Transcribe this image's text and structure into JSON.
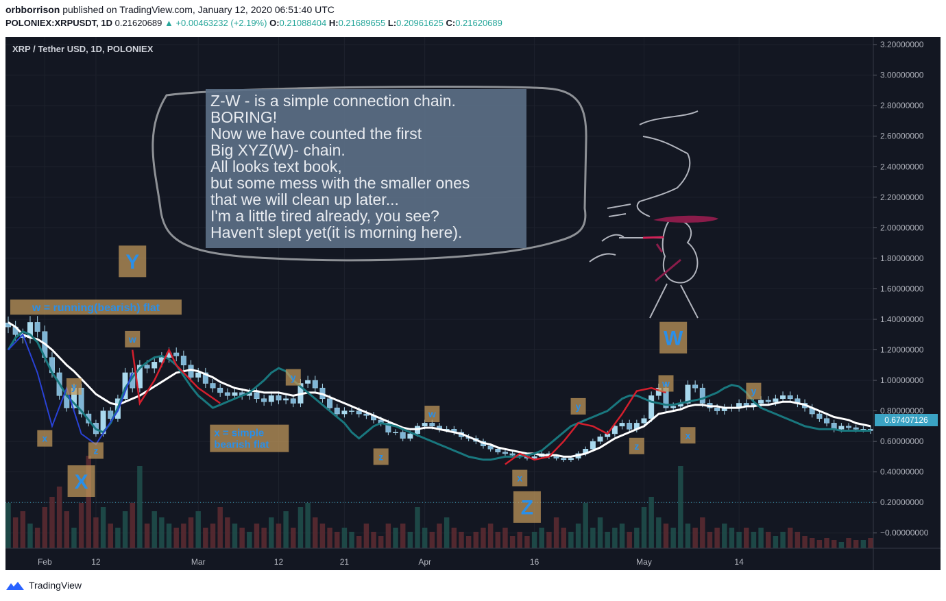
{
  "header": {
    "author": "orbborrison",
    "published_text": "published on TradingView.com, January 12, 2020 06:51:40 UTC",
    "symbol": "POLONIEX:XRPUSDT, 1D",
    "last": "0.21620689",
    "change": "▲ +0.00463232 (+2.19%)",
    "o_label": "O:",
    "o_value": "0.21088404",
    "h_label": "H:",
    "h_value": "0.21689655",
    "l_label": "L:",
    "l_value": "0.20961625",
    "c_label": "C:",
    "c_value": "0.21620689"
  },
  "chart_title": "XRP / Tether USD, 1D, POLONIEX",
  "price_badge": "0.67407126",
  "footer_brand": "TradingView",
  "colors": {
    "up": "#26a69a",
    "down": "#ef5350",
    "candle_body": "#a9d9ee",
    "ma_white": "#ffffff",
    "ma_teal": "#19777e",
    "accent_blue": "#2962ff",
    "note_box": "#c49a5c"
  },
  "chart_data": {
    "type": "candlestick",
    "title": "XRP / Tether USD, 1D, POLONIEX",
    "ylim": [
      -0.1,
      3.25
    ],
    "y_ticks": [
      3.2,
      3.0,
      2.8,
      2.6,
      2.4,
      2.2,
      2.0,
      1.8,
      1.6,
      1.4,
      1.2,
      1.0,
      0.8,
      0.6,
      0.4,
      0.2,
      0.0
    ],
    "y_tick_labels": [
      "3.20000000",
      "3.00000000",
      "2.80000000",
      "2.60000000",
      "2.40000000",
      "2.20000000",
      "2.00000000",
      "1.80000000",
      "1.60000000",
      "1.40000000",
      "1.20000000",
      "1.00000000",
      "0.80000000",
      "0.60000000",
      "0.40000000",
      "0.20000000",
      "−0.00000000"
    ],
    "x_ticks": [
      {
        "label": "Feb",
        "day": 5
      },
      {
        "label": "12",
        "day": 12
      },
      {
        "label": "Mar",
        "day": 26
      },
      {
        "label": "12",
        "day": 37
      },
      {
        "label": "21",
        "day": 46
      },
      {
        "label": "Apr",
        "day": 57
      },
      {
        "label": "16",
        "day": 72
      },
      {
        "label": "May",
        "day": 87
      },
      {
        "label": "14",
        "day": 100
      }
    ],
    "day_range": [
      0,
      118
    ],
    "close": [
      1.35,
      1.3,
      1.28,
      1.38,
      1.32,
      1.15,
      1.05,
      0.9,
      0.82,
      0.95,
      0.78,
      0.72,
      0.65,
      0.8,
      0.75,
      0.88,
      1.05,
      0.95,
      1.1,
      1.08,
      1.12,
      1.15,
      1.18,
      1.16,
      1.1,
      1.02,
      1.05,
      0.98,
      0.95,
      0.92,
      0.9,
      0.92,
      0.9,
      0.92,
      0.88,
      0.86,
      0.9,
      0.87,
      0.88,
      0.85,
      0.98,
      1.0,
      0.95,
      0.88,
      0.82,
      0.78,
      0.8,
      0.8,
      0.78,
      0.77,
      0.74,
      0.72,
      0.66,
      0.66,
      0.62,
      0.65,
      0.7,
      0.72,
      0.7,
      0.68,
      0.68,
      0.66,
      0.63,
      0.62,
      0.6,
      0.57,
      0.55,
      0.53,
      0.52,
      0.51,
      0.5,
      0.49,
      0.5,
      0.52,
      0.5,
      0.49,
      0.48,
      0.49,
      0.52,
      0.55,
      0.6,
      0.63,
      0.65,
      0.7,
      0.72,
      0.68,
      0.72,
      0.75,
      0.9,
      0.95,
      0.82,
      0.83,
      0.85,
      0.97,
      0.95,
      0.85,
      0.82,
      0.8,
      0.82,
      0.82,
      0.85,
      0.83,
      0.85,
      0.87,
      0.86,
      0.88,
      0.9,
      0.88,
      0.85,
      0.82,
      0.78,
      0.75,
      0.72,
      0.68,
      0.7,
      0.69,
      0.68,
      0.68,
      0.67
    ],
    "series": [
      {
        "name": "",
        "values": [
          1.38,
          1.35,
          1.3,
          1.28,
          1.27,
          1.24,
          1.2,
          1.15,
          1.1,
          1.06,
          1.01,
          0.96,
          0.91,
          0.88,
          0.85,
          0.84,
          0.86,
          0.88,
          0.9,
          0.93,
          0.96,
          0.99,
          1.02,
          1.05,
          1.06,
          1.07,
          1.06,
          1.04,
          1.02,
          0.99,
          0.97,
          0.95,
          0.94,
          0.93,
          0.93,
          0.92,
          0.92,
          0.92,
          0.91,
          0.9,
          0.91,
          0.92,
          0.92,
          0.91,
          0.89,
          0.87,
          0.85,
          0.83,
          0.81,
          0.79,
          0.77,
          0.75,
          0.73,
          0.71,
          0.69,
          0.68,
          0.68,
          0.69,
          0.69,
          0.68,
          0.67,
          0.66,
          0.65,
          0.63,
          0.61,
          0.59,
          0.58,
          0.56,
          0.55,
          0.54,
          0.53,
          0.52,
          0.52,
          0.51,
          0.51,
          0.51,
          0.5,
          0.5,
          0.51,
          0.52,
          0.54,
          0.56,
          0.59,
          0.62,
          0.64,
          0.66,
          0.68,
          0.7,
          0.74,
          0.78,
          0.79,
          0.8,
          0.81,
          0.83,
          0.84,
          0.84,
          0.83,
          0.83,
          0.82,
          0.82,
          0.82,
          0.83,
          0.83,
          0.84,
          0.84,
          0.85,
          0.86,
          0.86,
          0.85,
          0.84,
          0.82,
          0.8,
          0.78,
          0.76,
          0.75,
          0.74,
          0.72,
          0.71,
          0.7
        ]
      },
      {
        "name": "",
        "values": [
          1.2,
          1.28,
          1.32,
          1.3,
          1.25,
          1.15,
          1.05,
          0.98,
          0.9,
          0.85,
          0.8,
          0.74,
          0.68,
          0.66,
          0.72,
          0.82,
          0.95,
          1.02,
          1.08,
          1.12,
          1.15,
          1.16,
          1.14,
          1.1,
          1.03,
          0.96,
          0.9,
          0.86,
          0.82,
          0.84,
          0.86,
          0.88,
          0.9,
          0.92,
          0.96,
          1.0,
          1.05,
          1.08,
          1.06,
          1.0,
          0.96,
          0.92,
          0.88,
          0.84,
          0.8,
          0.76,
          0.72,
          0.66,
          0.62,
          0.66,
          0.7,
          0.72,
          0.71,
          0.7,
          0.68,
          0.66,
          0.64,
          0.62,
          0.6,
          0.58,
          0.56,
          0.54,
          0.52,
          0.5,
          0.49,
          0.48,
          0.48,
          0.49,
          0.5,
          0.5,
          0.5,
          0.51,
          0.52,
          0.54,
          0.58,
          0.62,
          0.66,
          0.7,
          0.72,
          0.74,
          0.76,
          0.78,
          0.8,
          0.84,
          0.88,
          0.9,
          0.9,
          0.88,
          0.86,
          0.85,
          0.84,
          0.84,
          0.85,
          0.86,
          0.87,
          0.88,
          0.9,
          0.92,
          0.95,
          0.97,
          0.96,
          0.92,
          0.86,
          0.82,
          0.8,
          0.78,
          0.76,
          0.74,
          0.72,
          0.7,
          0.69,
          0.68,
          0.68,
          0.68,
          0.67,
          0.67,
          0.67,
          0.67,
          0.67
        ]
      }
    ],
    "volume": [
      0.22,
      0.15,
      0.18,
      0.12,
      0.1,
      0.2,
      0.25,
      0.3,
      0.18,
      0.1,
      0.22,
      0.45,
      0.15,
      0.2,
      0.12,
      0.1,
      0.18,
      0.22,
      0.4,
      0.12,
      0.18,
      0.15,
      0.12,
      0.1,
      0.12,
      0.15,
      0.18,
      0.1,
      0.12,
      0.2,
      0.15,
      0.12,
      0.1,
      0.08,
      0.12,
      0.1,
      0.15,
      0.12,
      0.18,
      0.1,
      0.2,
      0.22,
      0.15,
      0.12,
      0.1,
      0.08,
      0.1,
      0.08,
      0.06,
      0.12,
      0.08,
      0.06,
      0.12,
      0.1,
      0.12,
      0.08,
      0.2,
      0.1,
      0.08,
      0.12,
      0.15,
      0.1,
      0.08,
      0.06,
      0.08,
      0.1,
      0.12,
      0.08,
      0.1,
      0.06,
      0.08,
      0.06,
      0.08,
      0.1,
      0.08,
      0.15,
      0.1,
      0.08,
      0.12,
      0.22,
      0.1,
      0.15,
      0.08,
      0.1,
      0.12,
      0.08,
      0.1,
      0.2,
      0.25,
      0.15,
      0.12,
      0.1,
      0.4,
      0.12,
      0.1,
      0.15,
      0.08,
      0.1,
      0.12,
      0.1,
      0.08,
      0.1,
      0.08,
      0.1,
      0.08,
      0.06,
      0.08,
      0.1,
      0.08,
      0.06,
      0.05,
      0.04,
      0.05,
      0.04,
      0.03,
      0.05,
      0.04,
      0.04,
      0.05
    ],
    "annotations": [
      {
        "text": "Y",
        "day": 17,
        "price": 1.78,
        "size": "big"
      },
      {
        "text": "w = running(bearish) flat",
        "day": 12,
        "price": 1.48,
        "size": "label"
      },
      {
        "text": "w",
        "day": 17,
        "price": 1.27,
        "size": "small"
      },
      {
        "text": "y",
        "day": 9,
        "price": 0.96,
        "size": "small"
      },
      {
        "text": "x",
        "day": 5,
        "price": 0.62,
        "size": "small"
      },
      {
        "text": "z",
        "day": 12,
        "price": 0.54,
        "size": "small"
      },
      {
        "text": "X",
        "day": 10,
        "price": 0.34,
        "size": "big"
      },
      {
        "text": "y",
        "day": 39,
        "price": 1.02,
        "size": "small"
      },
      {
        "text": "x = simple bearish flat",
        "day": 33,
        "price": 0.62,
        "size": "label2"
      },
      {
        "text": "w",
        "day": 58,
        "price": 0.78,
        "size": "small2"
      },
      {
        "text": "z",
        "day": 51,
        "price": 0.5,
        "size": "small"
      },
      {
        "text": "x",
        "day": 70,
        "price": 0.36,
        "size": "small"
      },
      {
        "text": "Z",
        "day": 71,
        "price": 0.17,
        "size": "big"
      },
      {
        "text": "y",
        "day": 78,
        "price": 0.83,
        "size": "small"
      },
      {
        "text": "z",
        "day": 86,
        "price": 0.57,
        "size": "small"
      },
      {
        "text": "W",
        "day": 91,
        "price": 1.28,
        "size": "big"
      },
      {
        "text": "w",
        "day": 90,
        "price": 0.98,
        "size": "small"
      },
      {
        "text": "x",
        "day": 93,
        "price": 0.64,
        "size": "small"
      },
      {
        "text": "y",
        "day": 102,
        "price": 0.93,
        "size": "small"
      }
    ]
  },
  "speech_bubble": {
    "lines": [
      "Z-W - is a simple connection chain.",
      "BORING!",
      "Now we have counted the first",
      "Big XYZ(W)- chain.",
      "All looks text book,",
      "but some mess with the smaller ones",
      "that we will clean up later...",
      "I'm a little tired already, you see?",
      "Haven't slept yet(it is morning here)."
    ]
  }
}
